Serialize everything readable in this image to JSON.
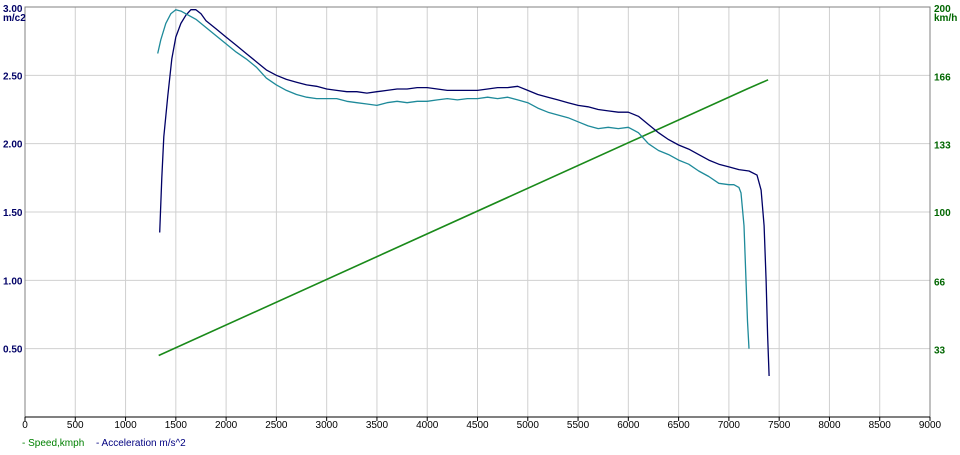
{
  "chart_data": {
    "type": "line",
    "title": "",
    "x_axis": {
      "min": 0,
      "max": 9000,
      "ticks": [
        "0",
        "500",
        "1000",
        "1500",
        "2000",
        "2500",
        "3000",
        "3500",
        "4000",
        "4500",
        "5000",
        "5500",
        "6000",
        "6500",
        "7000",
        "7500",
        "8000",
        "8500",
        "9000"
      ]
    },
    "y_left": {
      "label": "m/c2",
      "label_color": "#000066",
      "min": 0,
      "max": 3.0,
      "ticks": [
        {
          "v": 0.5,
          "t": "0.50"
        },
        {
          "v": 1.0,
          "t": "1.00"
        },
        {
          "v": 1.5,
          "t": "1.50"
        },
        {
          "v": 2.0,
          "t": "2.00"
        },
        {
          "v": 2.5,
          "t": "2.50"
        },
        {
          "v": 3.0,
          "t": "3.00"
        }
      ]
    },
    "y_right": {
      "label": "km/h",
      "label_color": "#006600",
      "min": 0,
      "max": 200,
      "ticks": [
        {
          "v": 33,
          "t": "33"
        },
        {
          "v": 66,
          "t": "66"
        },
        {
          "v": 100,
          "t": "100"
        },
        {
          "v": 133,
          "t": "133"
        },
        {
          "v": 166,
          "t": "166"
        },
        {
          "v": 200,
          "t": "200"
        }
      ]
    },
    "grid": true,
    "legend_position": "bottom-left",
    "legend": [
      {
        "label": "- Speed,kmph",
        "color": "#008000"
      },
      {
        "label": "- Acceleration m/s^2",
        "color": "#000080"
      }
    ],
    "series": [
      {
        "axis": "right",
        "color": "#1a8a1a",
        "width": 1.6,
        "points": [
          [
            1330,
            30
          ],
          [
            7180,
            160
          ],
          [
            7390,
            164.5
          ]
        ]
      },
      {
        "axis": "left",
        "color": "#000066",
        "width": 1.3,
        "points": [
          [
            1340,
            1.35
          ],
          [
            1360,
            1.75
          ],
          [
            1380,
            2.05
          ],
          [
            1420,
            2.35
          ],
          [
            1460,
            2.62
          ],
          [
            1500,
            2.78
          ],
          [
            1550,
            2.88
          ],
          [
            1600,
            2.94
          ],
          [
            1650,
            2.98
          ],
          [
            1700,
            2.98
          ],
          [
            1750,
            2.95
          ],
          [
            1800,
            2.9
          ],
          [
            1900,
            2.84
          ],
          [
            2000,
            2.78
          ],
          [
            2100,
            2.72
          ],
          [
            2200,
            2.66
          ],
          [
            2300,
            2.6
          ],
          [
            2400,
            2.54
          ],
          [
            2500,
            2.5
          ],
          [
            2600,
            2.47
          ],
          [
            2700,
            2.45
          ],
          [
            2800,
            2.43
          ],
          [
            2900,
            2.42
          ],
          [
            3000,
            2.4
          ],
          [
            3100,
            2.39
          ],
          [
            3200,
            2.38
          ],
          [
            3300,
            2.38
          ],
          [
            3400,
            2.37
          ],
          [
            3500,
            2.38
          ],
          [
            3600,
            2.39
          ],
          [
            3700,
            2.4
          ],
          [
            3800,
            2.4
          ],
          [
            3900,
            2.41
          ],
          [
            4000,
            2.41
          ],
          [
            4100,
            2.4
          ],
          [
            4200,
            2.39
          ],
          [
            4300,
            2.39
          ],
          [
            4400,
            2.39
          ],
          [
            4500,
            2.39
          ],
          [
            4600,
            2.4
          ],
          [
            4700,
            2.41
          ],
          [
            4800,
            2.41
          ],
          [
            4900,
            2.42
          ],
          [
            5000,
            2.39
          ],
          [
            5100,
            2.36
          ],
          [
            5200,
            2.34
          ],
          [
            5300,
            2.32
          ],
          [
            5400,
            2.3
          ],
          [
            5500,
            2.28
          ],
          [
            5600,
            2.27
          ],
          [
            5700,
            2.25
          ],
          [
            5800,
            2.24
          ],
          [
            5900,
            2.23
          ],
          [
            6000,
            2.23
          ],
          [
            6100,
            2.2
          ],
          [
            6200,
            2.14
          ],
          [
            6300,
            2.08
          ],
          [
            6400,
            2.03
          ],
          [
            6500,
            1.99
          ],
          [
            6600,
            1.96
          ],
          [
            6700,
            1.92
          ],
          [
            6800,
            1.88
          ],
          [
            6900,
            1.85
          ],
          [
            7000,
            1.83
          ],
          [
            7100,
            1.81
          ],
          [
            7200,
            1.8
          ],
          [
            7280,
            1.77
          ],
          [
            7320,
            1.66
          ],
          [
            7350,
            1.4
          ],
          [
            7370,
            1.0
          ],
          [
            7385,
            0.6
          ],
          [
            7395,
            0.4
          ],
          [
            7400,
            0.3
          ]
        ]
      },
      {
        "axis": "left",
        "color": "#1e8a9a",
        "width": 1.3,
        "points": [
          [
            1320,
            2.66
          ],
          [
            1350,
            2.76
          ],
          [
            1400,
            2.88
          ],
          [
            1450,
            2.95
          ],
          [
            1500,
            2.98
          ],
          [
            1550,
            2.97
          ],
          [
            1600,
            2.95
          ],
          [
            1700,
            2.91
          ],
          [
            1800,
            2.85
          ],
          [
            1900,
            2.79
          ],
          [
            2000,
            2.73
          ],
          [
            2100,
            2.67
          ],
          [
            2200,
            2.62
          ],
          [
            2300,
            2.56
          ],
          [
            2400,
            2.48
          ],
          [
            2500,
            2.43
          ],
          [
            2600,
            2.39
          ],
          [
            2700,
            2.36
          ],
          [
            2800,
            2.34
          ],
          [
            2900,
            2.33
          ],
          [
            3000,
            2.33
          ],
          [
            3100,
            2.33
          ],
          [
            3200,
            2.31
          ],
          [
            3300,
            2.3
          ],
          [
            3400,
            2.29
          ],
          [
            3500,
            2.28
          ],
          [
            3600,
            2.3
          ],
          [
            3700,
            2.31
          ],
          [
            3800,
            2.3
          ],
          [
            3900,
            2.31
          ],
          [
            4000,
            2.31
          ],
          [
            4100,
            2.32
          ],
          [
            4200,
            2.33
          ],
          [
            4300,
            2.32
          ],
          [
            4400,
            2.33
          ],
          [
            4500,
            2.33
          ],
          [
            4600,
            2.34
          ],
          [
            4700,
            2.33
          ],
          [
            4800,
            2.34
          ],
          [
            4900,
            2.32
          ],
          [
            5000,
            2.3
          ],
          [
            5100,
            2.26
          ],
          [
            5200,
            2.23
          ],
          [
            5300,
            2.21
          ],
          [
            5400,
            2.19
          ],
          [
            5500,
            2.16
          ],
          [
            5600,
            2.13
          ],
          [
            5700,
            2.11
          ],
          [
            5800,
            2.12
          ],
          [
            5900,
            2.11
          ],
          [
            6000,
            2.12
          ],
          [
            6100,
            2.08
          ],
          [
            6200,
            2.0
          ],
          [
            6300,
            1.95
          ],
          [
            6400,
            1.92
          ],
          [
            6500,
            1.88
          ],
          [
            6600,
            1.85
          ],
          [
            6700,
            1.8
          ],
          [
            6800,
            1.76
          ],
          [
            6900,
            1.71
          ],
          [
            7000,
            1.7
          ],
          [
            7050,
            1.7
          ],
          [
            7100,
            1.68
          ],
          [
            7120,
            1.64
          ],
          [
            7150,
            1.4
          ],
          [
            7170,
            1.0
          ],
          [
            7185,
            0.7
          ],
          [
            7200,
            0.5
          ]
        ]
      }
    ]
  }
}
